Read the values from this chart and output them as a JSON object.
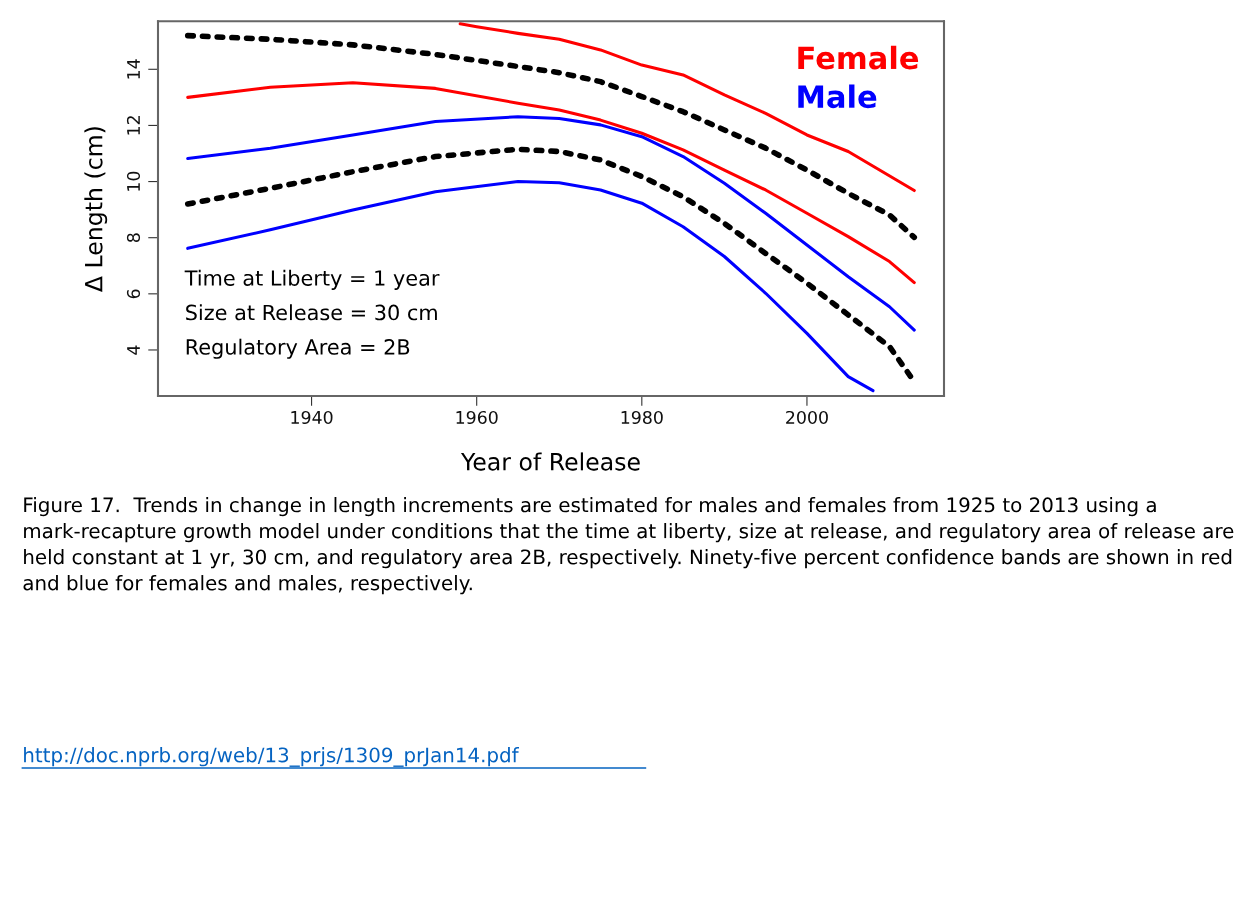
{
  "chart_data": {
    "type": "line",
    "xlabel": "Year of Release",
    "ylabel": "Δ Length (cm)",
    "xlim": [
      1921.4,
      2016.6
    ],
    "ylim": [
      2.36,
      15.71
    ],
    "xticks": [
      1940,
      1960,
      1980,
      2000
    ],
    "yticks": [
      4,
      6,
      8,
      10,
      12,
      14
    ],
    "grid": false,
    "legend": "top right",
    "marker": "none",
    "series": [
      {
        "name": "Female",
        "color": "#ff0000",
        "line_style": "solid",
        "x": [
          1958,
          1960,
          1965,
          1970,
          1975,
          1980,
          1985,
          1990,
          1995,
          2000,
          2005,
          2013
        ],
        "values": [
          15.62,
          15.52,
          15.28,
          15.07,
          14.69,
          14.15,
          13.8,
          13.09,
          12.43,
          11.66,
          11.07,
          9.68
        ]
      },
      {
        "color": "#000000",
        "line_style": "dotted",
        "x": [
          1925,
          1935,
          1945,
          1955,
          1965,
          1970,
          1975,
          1980,
          1985,
          1990,
          1995,
          2000,
          2005,
          2010,
          2013
        ],
        "values": [
          15.2,
          15.07,
          14.87,
          14.53,
          14.1,
          13.88,
          13.56,
          13.03,
          12.49,
          11.84,
          11.19,
          10.41,
          9.58,
          8.81,
          8.01
        ]
      },
      {
        "color": "#ff0000",
        "line_style": "solid",
        "x": [
          1925,
          1935,
          1945,
          1955,
          1965,
          1970,
          1975,
          1980,
          1985,
          1990,
          1995,
          2000,
          2005,
          2010,
          2013
        ],
        "values": [
          13.0,
          13.36,
          13.52,
          13.32,
          12.79,
          12.55,
          12.19,
          11.72,
          11.13,
          10.41,
          9.7,
          8.87,
          8.04,
          7.15,
          6.4
        ]
      },
      {
        "name": "Male",
        "color": "#0000ff",
        "line_style": "solid",
        "x": [
          1925,
          1935,
          1945,
          1955,
          1965,
          1970,
          1975,
          1980,
          1985,
          1990,
          1995,
          2000,
          2005,
          2010,
          2013
        ],
        "values": [
          10.82,
          11.19,
          11.66,
          12.14,
          12.31,
          12.25,
          12.02,
          11.6,
          10.89,
          9.94,
          8.87,
          7.74,
          6.61,
          5.54,
          4.71
        ]
      },
      {
        "color": "#000000",
        "line_style": "dotted",
        "x": [
          1925,
          1935,
          1945,
          1955,
          1965,
          1970,
          1975,
          1980,
          1985,
          1990,
          1995,
          2000,
          2005,
          2010,
          2013
        ],
        "values": [
          9.2,
          9.76,
          10.35,
          10.89,
          11.15,
          11.07,
          10.77,
          10.18,
          9.46,
          8.51,
          7.44,
          6.38,
          5.25,
          4.12,
          2.87
        ]
      },
      {
        "color": "#0000ff",
        "line_style": "solid",
        "x": [
          1925,
          1935,
          1945,
          1955,
          1965,
          1970,
          1975,
          1980,
          1985,
          1990,
          1995,
          2000,
          2005,
          2008
        ],
        "values": [
          7.62,
          8.28,
          8.99,
          9.64,
          10.0,
          9.96,
          9.7,
          9.23,
          8.39,
          7.33,
          6.02,
          4.59,
          3.05,
          2.55
        ]
      }
    ],
    "annotations": [
      "Time at Liberty = 1 year",
      "Size at Release = 30 cm",
      "Regulatory Area = 2B",
      "Figure 17.  Trends in change in length increments are estimated for males and females from 1925 to 2013 using a mark-recapture growth model under conditions that the time at liberty, size at release, and regulatory area of release are held constant at 1 yr, 30 cm, and regulatory area 2B, respectively. Ninety-five percent confidence bands are shown in red and blue for females and males, respectively.",
      "http://doc.nprb.org/web/13_prjs/1309_prJan14.pdf"
    ]
  }
}
